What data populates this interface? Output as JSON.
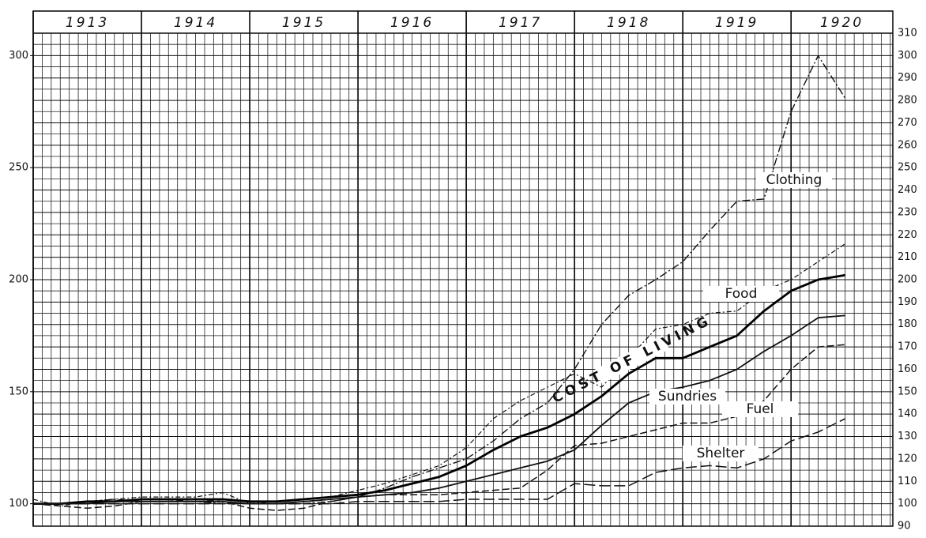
{
  "chart_data": {
    "type": "line",
    "x": [
      1913,
      1913.25,
      1913.5,
      1913.75,
      1914,
      1914.25,
      1914.5,
      1914.75,
      1915,
      1915.25,
      1915.5,
      1915.75,
      1916,
      1916.25,
      1916.5,
      1916.75,
      1917,
      1917.25,
      1917.5,
      1917.75,
      1918,
      1918.25,
      1918.5,
      1918.75,
      1919,
      1919.25,
      1919.5,
      1919.75,
      1920,
      1920.25,
      1920.5
    ],
    "xlim": [
      1913,
      1920.94
    ],
    "xticks": [
      1913,
      1914,
      1915,
      1916,
      1917,
      1918,
      1919,
      1920
    ],
    "ylim": [
      90,
      310
    ],
    "yticks": [
      100,
      150,
      200,
      250,
      300
    ],
    "y2lim": [
      90,
      310
    ],
    "y2ticks": [
      90,
      100,
      110,
      120,
      130,
      140,
      150,
      160,
      170,
      180,
      190,
      200,
      210,
      220,
      230,
      240,
      250,
      260,
      270,
      280,
      290,
      300,
      310
    ],
    "grid": true,
    "series": [
      {
        "name": "Clothing",
        "color": "#111111",
        "dash": "10 3 2 3",
        "width": 1.4,
        "values": [
          100,
          100,
          101,
          102,
          101,
          101,
          101,
          100,
          100,
          100,
          100,
          101,
          103,
          107,
          112,
          116,
          120,
          128,
          138,
          145,
          160,
          180,
          193,
          200,
          208,
          222,
          235,
          236,
          275,
          300,
          281
        ]
      },
      {
        "name": "Food",
        "color": "#111111",
        "dash": "6 3 2 3",
        "width": 1.2,
        "values": [
          102,
          99,
          101,
          102,
          103,
          103,
          103,
          105,
          100,
          101,
          102,
          103,
          106,
          109,
          113,
          117,
          125,
          138,
          146,
          152,
          158,
          152,
          165,
          178,
          180,
          185,
          186,
          195,
          200,
          208,
          216
        ]
      },
      {
        "name": "COST OF LIVING",
        "color": "#000000",
        "dash": "",
        "width": 2.8,
        "values": [
          100,
          100,
          101,
          101,
          102,
          102,
          102,
          102,
          101,
          101,
          102,
          103,
          104,
          106,
          109,
          112,
          117,
          124,
          130,
          134,
          140,
          148,
          158,
          165,
          165,
          170,
          175,
          186,
          195,
          200,
          202
        ]
      },
      {
        "name": "Sundries",
        "color": "#111111",
        "dash": "",
        "width": 1.8,
        "values": [
          100,
          100,
          100,
          101,
          101,
          101,
          101,
          101,
          100,
          100,
          101,
          102,
          103,
          104,
          105,
          107,
          110,
          113,
          116,
          119,
          124,
          135,
          145,
          150,
          152,
          155,
          160,
          168,
          175,
          183,
          184
        ]
      },
      {
        "name": "Fuel",
        "color": "#111111",
        "dash": "9 4",
        "width": 1.5,
        "values": [
          100,
          99,
          98,
          99,
          101,
          101,
          102,
          101,
          98,
          97,
          98,
          101,
          103,
          104,
          104,
          104,
          105,
          106,
          107,
          115,
          126,
          127,
          130,
          133,
          136,
          136,
          139,
          146,
          160,
          170,
          171
        ]
      },
      {
        "name": "Shelter",
        "color": "#111111",
        "dash": "14 5",
        "width": 1.5,
        "values": [
          100,
          100,
          100,
          100,
          100,
          100,
          100,
          100,
          100,
          100,
          100,
          100,
          101,
          101,
          101,
          101,
          102,
          102,
          102,
          102,
          109,
          108,
          108,
          114,
          116,
          117,
          116,
          120,
          128,
          132,
          138
        ]
      }
    ]
  }
}
